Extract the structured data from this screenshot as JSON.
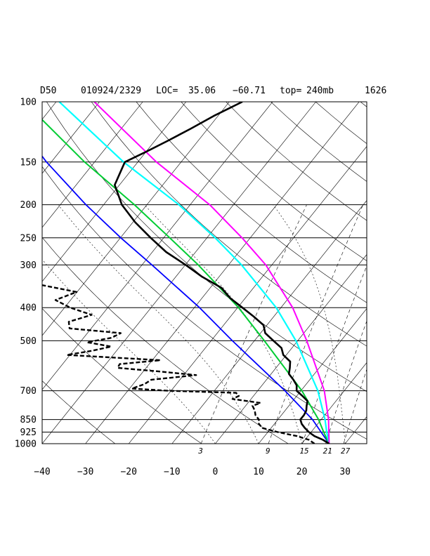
{
  "chart_data": {
    "type": "line",
    "title": "D50     010924/2329 LOC= 35.06     −60.71   top= 240mb    1626",
    "header": {
      "id": "D50",
      "datetime": "010924/2329",
      "loc_label": "LOC=",
      "lat": "35.06",
      "lon": "−60.71",
      "top_label": "top=",
      "top": "240mb",
      "extra": "1626"
    },
    "pressure_axis": {
      "labels": [
        "100",
        "150",
        "200",
        "250",
        "300",
        "400",
        "500",
        "700",
        "850",
        "925",
        "1000"
      ],
      "values": [
        100,
        150,
        200,
        250,
        300,
        400,
        500,
        700,
        850,
        925,
        1000
      ]
    },
    "temperature_axis": {
      "labels": [
        "−40",
        "−30",
        "−20",
        "−10",
        "0",
        "10",
        "20",
        "30"
      ],
      "values": [
        -40,
        -30,
        -20,
        -10,
        0,
        10,
        20,
        30
      ]
    },
    "mixing_ratio_labels": [
      "3",
      "9",
      "15",
      "21",
      "27"
    ],
    "mixing_ratios": [
      3,
      9,
      15,
      21,
      27
    ],
    "dry_adiabats_theta_k": [
      210,
      230,
      250,
      270,
      290,
      310,
      330,
      350,
      370,
      390,
      410,
      430,
      450,
      470,
      490
    ],
    "moist_adiabats_c": [
      0,
      10,
      20,
      30
    ],
    "colors": {
      "temperature": "#000000",
      "dewpoint": "#000000",
      "blue": "#0000ff",
      "green": "#00cc33",
      "cyan": "#00ffff",
      "magenta": "#ff00ff"
    },
    "series": [
      {
        "key": "temperature",
        "p": [
          1000,
          975,
          950,
          925,
          900,
          875,
          850,
          825,
          800,
          775,
          750,
          725,
          700,
          675,
          650,
          625,
          600,
          575,
          550,
          525,
          500,
          475,
          450,
          425,
          400,
          375,
          350,
          325,
          300,
          275,
          250,
          225,
          200,
          175,
          150,
          140,
          130,
          120,
          110,
          100
        ],
        "t": [
          26.3,
          24.2,
          21.5,
          19.5,
          17.8,
          16.3,
          15.2,
          15.2,
          14.9,
          14.1,
          13.4,
          11.3,
          9.0,
          8.0,
          6.2,
          4.1,
          3.2,
          2.1,
          -0.7,
          -2.4,
          -5.6,
          -8.9,
          -10.8,
          -14.6,
          -18.9,
          -23.5,
          -27.4,
          -33.9,
          -39.9,
          -46.8,
          -53.0,
          -59.5,
          -65.8,
          -71.1,
          -73.0,
          -70.0,
          -67.0,
          -64.0,
          -61.0,
          -57.0
        ]
      },
      {
        "key": "dewpoint",
        "p": [
          1000,
          975,
          950,
          925,
          900,
          875,
          850,
          825,
          800,
          775,
          760,
          740,
          725,
          710,
          700,
          690,
          670,
          650,
          630,
          615,
          600,
          585,
          570,
          550,
          535,
          520,
          505,
          490,
          475,
          460,
          440,
          420,
          400,
          380,
          360,
          340,
          320,
          300,
          285,
          275
        ],
        "t": [
          22.9,
          21.0,
          17.5,
          12.3,
          8.0,
          6.4,
          5.6,
          4.0,
          3.0,
          1.6,
          2.9,
          -4.3,
          -3.4,
          -4.6,
          -20.6,
          -29.5,
          -27.4,
          -26.6,
          -17.1,
          -26.2,
          -36.6,
          -36.8,
          -28.1,
          -50.7,
          -45.7,
          -42.0,
          -48.4,
          -43.5,
          -42.3,
          -55.0,
          -56.4,
          -52.4,
          -58.7,
          -63.5,
          -60.1,
          -71.6,
          -80.6,
          -88.1,
          -94.2,
          -96.0
        ]
      },
      {
        "key": "blue",
        "p": [
          1000,
          925,
          850,
          700,
          500,
          400,
          300,
          250,
          200,
          150,
          100
        ],
        "t": [
          26.3,
          22.3,
          18.0,
          6.3,
          -15.1,
          -28.8,
          -47.7,
          -59.9,
          -74.1,
          -91.1,
          -112.8
        ]
      },
      {
        "key": "green",
        "p": [
          1000,
          925,
          850,
          700,
          500,
          400,
          300,
          250,
          200,
          150,
          100
        ],
        "t": [
          26.3,
          22.9,
          19.4,
          10.2,
          -7.7,
          -19.8,
          -37.0,
          -48.6,
          -62.9,
          -82.3,
          -107.4
        ]
      },
      {
        "key": "cyan",
        "p": [
          1000,
          925,
          850,
          700,
          500,
          400,
          300,
          250,
          200,
          150,
          100
        ],
        "t": [
          26.3,
          23.6,
          20.9,
          13.9,
          -0.4,
          -11.1,
          -27.0,
          -38.1,
          -52.6,
          -73.3,
          -99.3
        ]
      },
      {
        "key": "magenta",
        "p": [
          1000,
          925,
          850,
          700,
          500,
          400,
          300,
          250,
          200,
          150,
          100
        ],
        "t": [
          26.3,
          24.1,
          21.7,
          15.4,
          2.1,
          -7.3,
          -21.4,
          -31.9,
          -45.5,
          -65.7,
          -91.2
        ]
      }
    ],
    "p_range": [
      100,
      1000
    ],
    "t_range_at_1000": [
      -40,
      35
    ],
    "grid": true
  }
}
